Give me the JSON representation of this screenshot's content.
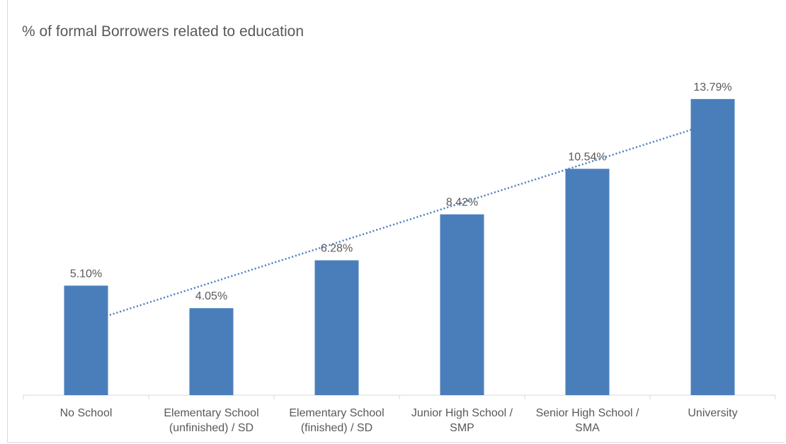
{
  "chart_data": {
    "type": "bar",
    "title": "% of formal Borrowers related to education",
    "categories": [
      [
        "No School"
      ],
      [
        "Elementary School",
        "(unfinished) / SD"
      ],
      [
        "Elementary School",
        "(finished) / SD"
      ],
      [
        "Junior High School /",
        "SMP"
      ],
      [
        "Senior High School /",
        "SMA"
      ],
      [
        "University"
      ]
    ],
    "values": [
      5.1,
      4.05,
      6.28,
      8.42,
      10.54,
      13.79
    ],
    "data_labels": [
      "5.10%",
      "4.05%",
      "6.28%",
      "8.42%",
      "10.54%",
      "13.79%"
    ],
    "trendline": {
      "type": "linear",
      "style": "dotted"
    },
    "ylim": [
      0,
      15.5
    ],
    "grid": false,
    "legend": "none",
    "colors": {
      "bar": "#4a7ebb",
      "trendline": "#4a7ebb",
      "label": "#595959",
      "axis": "#d9d9d9"
    }
  }
}
